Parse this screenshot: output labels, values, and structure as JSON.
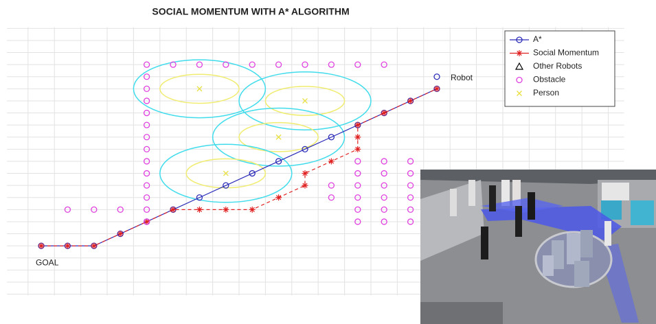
{
  "chart_data": {
    "type": "scatter",
    "title": "SOCIAL MOMENTUM WITH A* ALGORITHM",
    "xlim": [
      -1.3,
      22.1
    ],
    "ylim": [
      -4.1,
      18.1
    ],
    "xticks": [
      -0.5,
      0.5,
      1.5,
      2.5,
      3.5,
      4.5,
      5.5,
      6.5,
      7.5,
      8.5,
      9.5,
      10.5,
      11.5,
      12.5,
      13.5,
      14.5,
      15.5,
      16.5,
      17.5,
      18.5,
      19.5,
      20.5,
      21.5
    ],
    "yticks": [
      -4,
      -3,
      -2,
      -1,
      0,
      1,
      2,
      3,
      4,
      5,
      6,
      7,
      8,
      9,
      10,
      11,
      12,
      13,
      14,
      15,
      16,
      17,
      18
    ],
    "grid": true,
    "legend": "upper right",
    "series": [
      {
        "name": "A*",
        "color": "#2b2bb8",
        "marker": "o",
        "line": true,
        "x": [
          0,
          1,
          2,
          3,
          4,
          5,
          6,
          7,
          8,
          9,
          10,
          11,
          12,
          13,
          14,
          15
        ],
        "y": [
          0,
          0,
          0,
          1,
          2,
          3,
          4,
          5,
          6,
          7,
          8,
          9,
          10,
          11,
          12,
          13
        ]
      },
      {
        "name": "Social Momentum",
        "color": "#e02020",
        "marker": "*",
        "line": true,
        "dash": true,
        "x": [
          0,
          1,
          2,
          3,
          4,
          5,
          6,
          7,
          8,
          9,
          10,
          10,
          11,
          12,
          12,
          12,
          13,
          14,
          15
        ],
        "y": [
          0,
          0,
          0,
          1,
          2,
          3,
          3,
          3,
          3,
          4,
          5,
          6,
          7,
          8,
          9,
          10,
          11,
          12,
          13
        ]
      },
      {
        "name": "Other Robots",
        "color": "#000000",
        "marker": "^",
        "line": false,
        "x": [],
        "y": []
      },
      {
        "name": "Obstacle",
        "color": "#e040e0",
        "marker": "o",
        "line": false,
        "x": [
          4,
          5,
          6,
          7,
          8,
          9,
          10,
          11,
          12,
          13,
          4,
          4,
          4,
          4,
          4,
          4,
          4,
          4,
          4,
          4,
          4,
          4,
          4,
          1,
          2,
          3,
          11,
          11,
          12,
          12,
          12,
          12,
          12,
          12,
          13,
          13,
          13,
          13,
          13,
          13,
          14,
          14,
          14,
          14,
          14,
          14
        ],
        "y": [
          15,
          15,
          15,
          15,
          15,
          15,
          15,
          15,
          15,
          15,
          14,
          13,
          12,
          11,
          10,
          9,
          8,
          7,
          6,
          5,
          4,
          3,
          2,
          3,
          3,
          3,
          5,
          4,
          7,
          6,
          5,
          4,
          3,
          2,
          7,
          6,
          5,
          4,
          3,
          2,
          7,
          6,
          5,
          4,
          3,
          2
        ]
      },
      {
        "name": "Person",
        "color": "#e8e040",
        "marker": "x",
        "line": false,
        "x": [
          6,
          10,
          9,
          7
        ],
        "y": [
          13,
          12,
          9,
          6
        ],
        "inner_zone": [
          1.5,
          1.2
        ],
        "outer_zone": [
          2.5,
          2.4
        ],
        "zone_colors": [
          "#f0ec70",
          "#40dcec"
        ]
      }
    ],
    "robot": {
      "label": "Robot",
      "x": 15,
      "y": 14,
      "color": "#2b2bb8"
    },
    "goal": {
      "label": "GOAL"
    }
  }
}
